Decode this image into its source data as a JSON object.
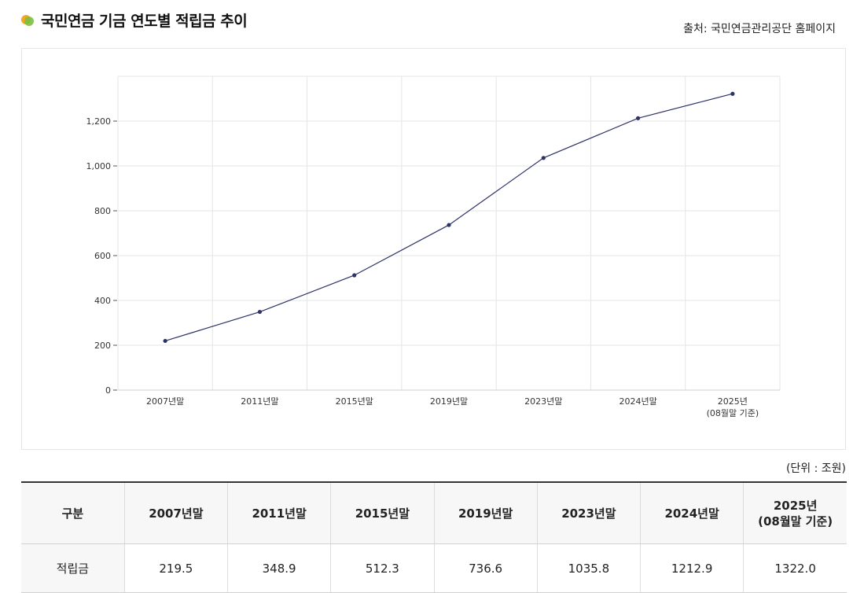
{
  "header": {
    "title": "국민연금 기금 연도별 적립금 추이",
    "source": "출처: 국민연금관리공단 홈페이지"
  },
  "colors": {
    "line": "#2d3366",
    "grid": "#e5e5e5",
    "icon_orange": "#f5a623",
    "icon_green": "#7bc043"
  },
  "chart_data": {
    "type": "line",
    "categories": [
      "2007년말",
      "2011년말",
      "2015년말",
      "2019년말",
      "2023년말",
      "2024년말",
      "2025년\n(08월말 기준)"
    ],
    "values": [
      219.5,
      348.9,
      512.3,
      736.6,
      1035.8,
      1212.9,
      1322.0
    ],
    "yticks": [
      0,
      200,
      400,
      600,
      800,
      1000,
      1200
    ],
    "ytick_labels": [
      "0",
      "200",
      "400",
      "600",
      "800",
      "1,000",
      "1,200"
    ],
    "ylim": [
      0,
      1400
    ],
    "grid": true
  },
  "table": {
    "unit": "(단위 : 조원)",
    "header_label": "구분",
    "columns": [
      "2007년말",
      "2011년말",
      "2015년말",
      "2019년말",
      "2023년말",
      "2024년말",
      "2025년\n(08월말 기준)"
    ],
    "row_label": "적립금",
    "values": [
      "219.5",
      "348.9",
      "512.3",
      "736.6",
      "1035.8",
      "1212.9",
      "1322.0"
    ]
  }
}
